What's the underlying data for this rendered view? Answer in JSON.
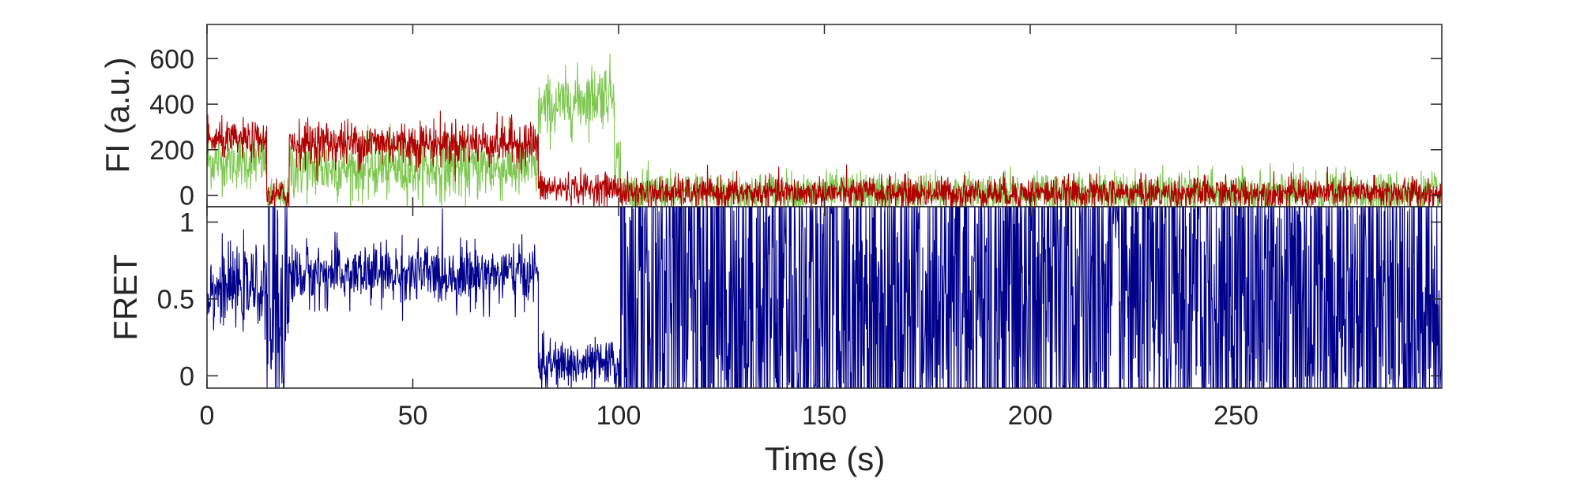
{
  "chart_data": [
    {
      "type": "line",
      "title": "",
      "ylabel": "FI (a.u.)",
      "xlabel": "",
      "xlim": [
        0,
        300
      ],
      "ylim": [
        -50,
        750
      ],
      "x_ticks": [
        0,
        50,
        100,
        150,
        200,
        250
      ],
      "y_ticks": [
        0,
        200,
        400,
        600
      ],
      "y_tick_labels": [
        "0",
        "200",
        "400",
        "600"
      ],
      "grid": false,
      "colors": {
        "donor": "#7ec850",
        "acceptor": "#b00000"
      },
      "series": [
        {
          "segments": [
            {
              "x_range": [
                0,
                14.5
              ],
              "mean": 150,
              "noise": 60
            },
            {
              "x_range": [
                14.5,
                20
              ],
              "mean": -10,
              "noise": 40
            },
            {
              "x_range": [
                20,
                80.5
              ],
              "mean": 120,
              "noise": 70
            },
            {
              "x_range": [
                80.5,
                99
              ],
              "mean": 370,
              "noise": 70,
              "trend": 90
            },
            {
              "x_range": [
                99,
                100.5
              ],
              "mean": 150,
              "noise": 60
            },
            {
              "x_range": [
                100.5,
                300
              ],
              "mean": 10,
              "noise": 45
            }
          ]
        },
        {
          "segments": [
            {
              "x_range": [
                0,
                14.5
              ],
              "mean": 240,
              "noise": 40
            },
            {
              "x_range": [
                14.5,
                20
              ],
              "mean": 0,
              "noise": 35
            },
            {
              "x_range": [
                20,
                80.5
              ],
              "mean": 230,
              "noise": 50
            },
            {
              "x_range": [
                80.5,
                100.5
              ],
              "mean": 30,
              "noise": 35
            },
            {
              "x_range": [
                100.5,
                300
              ],
              "mean": 10,
              "noise": 35
            }
          ]
        }
      ]
    },
    {
      "type": "line",
      "title": "",
      "ylabel": "FRET",
      "xlabel": "Time (s)",
      "xlim": [
        0,
        300
      ],
      "ylim": [
        -0.08,
        1.1
      ],
      "x_ticks": [
        0,
        50,
        100,
        150,
        200,
        250
      ],
      "x_tick_labels": [
        "0",
        "50",
        "100",
        "150",
        "200",
        "250"
      ],
      "y_ticks": [
        0,
        0.5,
        1
      ],
      "y_tick_labels": [
        "0",
        "0.5",
        "1"
      ],
      "grid": false,
      "colors": {
        "fret": "#00008b"
      },
      "series": [
        {
          "segments": [
            {
              "x_range": [
                0,
                14.5
              ],
              "mean": 0.57,
              "noise": 0.12
            },
            {
              "x_range": [
                14.5,
                20
              ],
              "mean": 0.5,
              "noise": 0.6,
              "clip": true
            },
            {
              "x_range": [
                20,
                80.5
              ],
              "mean": 0.66,
              "noise": 0.1
            },
            {
              "x_range": [
                80.5,
                100.5
              ],
              "mean": 0.07,
              "noise": 0.08
            },
            {
              "x_range": [
                100.5,
                300
              ],
              "mean": 0.5,
              "noise": 0.9,
              "clip": true
            }
          ]
        }
      ]
    }
  ]
}
